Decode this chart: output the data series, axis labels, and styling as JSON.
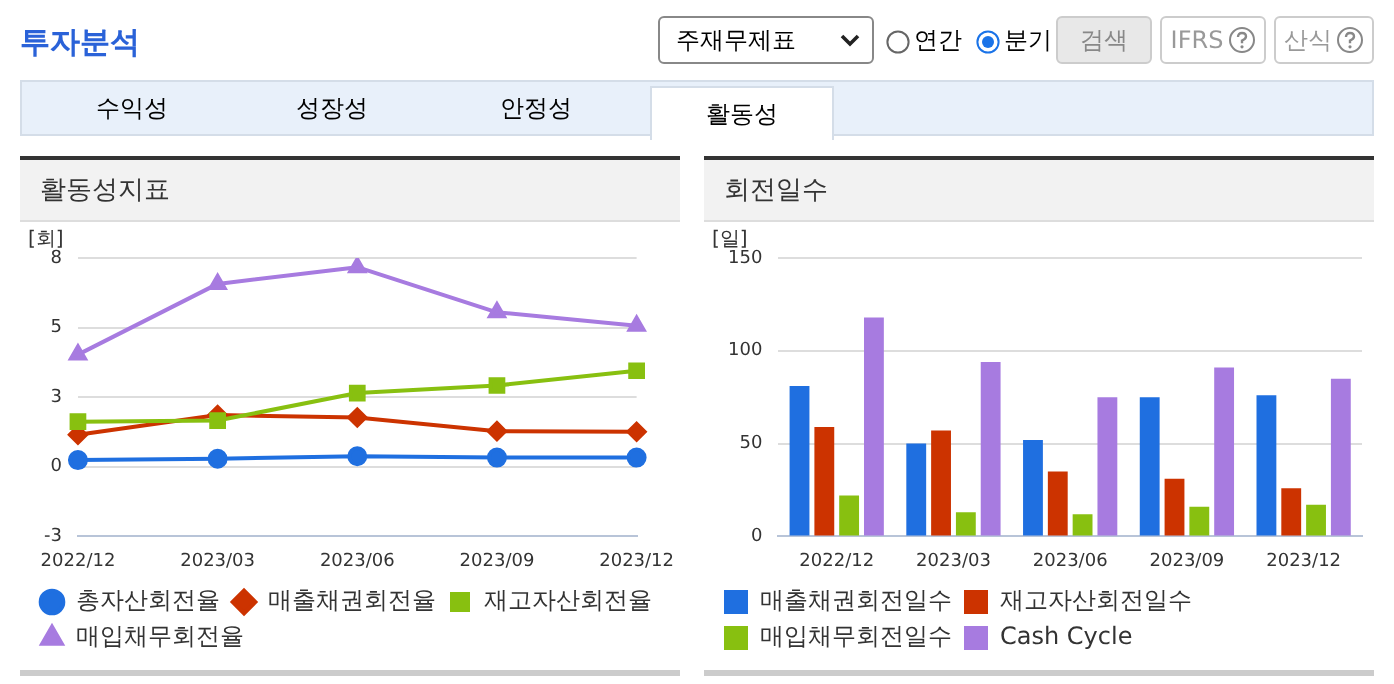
{
  "chart_data": [
    {
      "type": "other",
      "annotations": [
        "투자분석",
        "주재무제표",
        "연간",
        "분기",
        "검색",
        "IFRS",
        "산식",
        "수익성",
        "성장성",
        "안정성",
        "활동성"
      ]
    },
    {
      "type": "line",
      "title": "활동성지표",
      "ylabel": "[회]",
      "categories": [
        "2022/12",
        "2023/03",
        "2023/06",
        "2023/09",
        "2023/12"
      ],
      "series": [
        {
          "name": "총자산회전율",
          "color": "#1f6fe0",
          "marker": "circle",
          "values": [
            0.24,
            0.29,
            0.38,
            0.33,
            0.33
          ]
        },
        {
          "name": "매출채권회전율",
          "color": "#cc3300",
          "marker": "diamond",
          "values": [
            1.15,
            1.86,
            1.77,
            1.28,
            1.26
          ]
        },
        {
          "name": "재고자산회전율",
          "color": "#88c010",
          "marker": "square",
          "values": [
            1.62,
            1.66,
            2.65,
            2.92,
            3.45
          ]
        },
        {
          "name": "매입채무회전율",
          "color": "#a77be0",
          "marker": "triangle",
          "values": [
            4.03,
            6.57,
            7.17,
            5.55,
            5.07
          ]
        }
      ],
      "ylim": [
        -2.5,
        7.5
      ],
      "yticks": [
        {
          "value": -2.5,
          "label": "-3"
        },
        0,
        {
          "value": 2.5,
          "label": "3"
        },
        5,
        {
          "value": 7.5,
          "label": "8"
        }
      ],
      "grid": "y",
      "legend": "bottom",
      "line_style": "solid"
    },
    {
      "type": "bar",
      "title": "회전일수",
      "ylabel": "[일]",
      "categories": [
        "2022/12",
        "2023/03",
        "2023/06",
        "2023/09",
        "2023/12"
      ],
      "series": [
        {
          "name": "매출채권회전일수",
          "color": "#1f6fe0",
          "values": [
            81,
            50,
            52,
            75,
            76
          ]
        },
        {
          "name": "재고자산회전일수",
          "color": "#cc3300",
          "values": [
            59,
            57,
            35,
            31,
            26
          ]
        },
        {
          "name": "매입채무회전일수",
          "color": "#88c010",
          "values": [
            22,
            13,
            12,
            16,
            17
          ]
        },
        {
          "name": "Cash Cycle",
          "color": "#a77be0",
          "values": [
            118,
            94,
            75,
            91,
            85
          ]
        }
      ],
      "ylim": [
        0,
        150
      ],
      "yticks": [
        0,
        50,
        100,
        150
      ],
      "grid": "y",
      "legend": "bottom"
    }
  ]
}
